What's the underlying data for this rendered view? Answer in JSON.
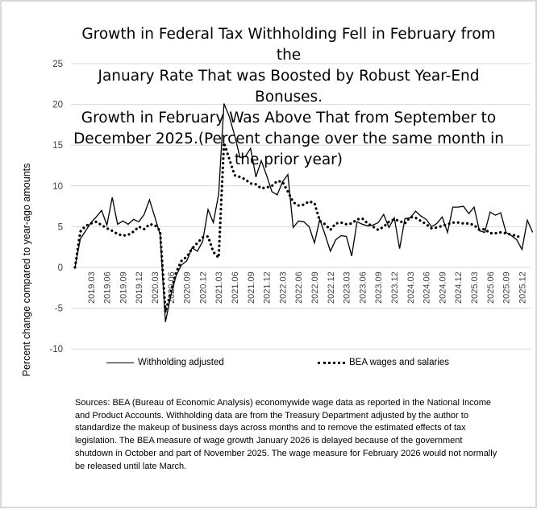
{
  "chart_data": {
    "type": "line",
    "title": "Growth in Federal Tax Withholding Fell in February from the January Rate That was Boosted by Robust Year-End Bonuses. Growth in February Was Above That from September to December 2025.(Percent change over the same month in the prior year)",
    "xlabel": "",
    "ylabel": "Percent change compared to year-ago amounts",
    "ylim": [
      -10,
      25
    ],
    "yticks": [
      "25",
      "20",
      "15",
      "10",
      "5",
      "0",
      "-5",
      "-10"
    ],
    "ytick_values": [
      25,
      20,
      15,
      10,
      5,
      0,
      -5,
      -10
    ],
    "grid": true,
    "legend_position": "bottom",
    "x_start": "2018.12",
    "xtick_labels": [
      "2019.03",
      "2019.06",
      "2019.09",
      "2019.12",
      "2020.03",
      "2020.06",
      "2020.09",
      "2020.12",
      "2021.03",
      "2021.06",
      "2021.09",
      "2021.12",
      "2022.03",
      "2022.06",
      "2022.09",
      "2022.12",
      "2023.03",
      "2023.06",
      "2023.09",
      "2023.12",
      "2024.03",
      "2024.06",
      "2024.09",
      "2024.12",
      "2025.03",
      "2025.06",
      "2025.09",
      "2025.12"
    ],
    "series": [
      {
        "name": "Withholding adjusted",
        "style": "solid",
        "color": "#000000",
        "values": [
          0,
          3.5,
          4.5,
          5.5,
          6.2,
          7.0,
          5.2,
          8.6,
          5.3,
          5.7,
          5.3,
          5.9,
          5.6,
          6.5,
          8.3,
          6.2,
          4.0,
          -6.7,
          -3.5,
          -1.0,
          0.3,
          0.8,
          2.4,
          2.0,
          3.2,
          7.1,
          5.5,
          9.0,
          20.1,
          18.5,
          16.2,
          13.5,
          13.6,
          14.6,
          11.1,
          13.1,
          11.3,
          9.3,
          8.9,
          10.5,
          11.4,
          4.9,
          5.7,
          5.6,
          5.0,
          3.0,
          5.9,
          4.0,
          2.0,
          3.4,
          3.9,
          3.8,
          1.4,
          5.6,
          5.3,
          5.1,
          5.2,
          5.5,
          6.5,
          4.9,
          6.1,
          2.3,
          6.0,
          6.1,
          6.9,
          6.3,
          5.9,
          5.0,
          5.4,
          6.2,
          4.3,
          7.4,
          7.4,
          7.5,
          6.6,
          7.4,
          4.5,
          4.3,
          6.8,
          6.4,
          6.7,
          4.3,
          3.9,
          3.4,
          2.2,
          5.8,
          4.3
        ]
      },
      {
        "name": "BEA wages and salaries",
        "style": "dotted",
        "color": "#000000",
        "values": [
          0,
          4.4,
          5.1,
          5.4,
          5.6,
          5.2,
          4.8,
          4.5,
          4.1,
          3.9,
          4.0,
          4.4,
          5.0,
          4.7,
          5.3,
          5.2,
          4.5,
          -5.5,
          -3.0,
          -0.6,
          0.8,
          1.3,
          2.3,
          3.0,
          3.7,
          3.8,
          1.9,
          1.2,
          15.3,
          13.3,
          11.3,
          11.1,
          10.8,
          10.3,
          10.2,
          9.7,
          9.8,
          10.0,
          10.6,
          10.5,
          9.3,
          8.0,
          7.6,
          7.7,
          8.1,
          7.9,
          5.7,
          5.3,
          4.6,
          5.4,
          5.5,
          5.3,
          5.4,
          5.9,
          6.0,
          5.4,
          5.0,
          4.6,
          5.0,
          5.6,
          5.9,
          5.7,
          5.4,
          6.2,
          6.1,
          5.7,
          5.3,
          4.8,
          4.9,
          5.1,
          5.3,
          5.5,
          5.5,
          5.4,
          5.4,
          5.2,
          4.6,
          4.7,
          4.2,
          4.2,
          4.3,
          4.2,
          4.0,
          3.9,
          3.5
        ]
      }
    ]
  },
  "title_lines": [
    "Growth in Federal Tax Withholding Fell in February from the",
    "January Rate That was Boosted by Robust Year-End Bonuses.",
    "Growth in February Was Above That from September to",
    "December  2025.(Percent change over the same month in",
    "the prior year)"
  ],
  "ylabel": "Percent change compared to year-ago amounts",
  "legend": {
    "withholding": "Withholding adjusted",
    "bea": "BEA wages and salaries"
  },
  "sources": "Sources:  BEA (Bureau of Economic Analysis) economywide wage data as reported in the National Income and Product Accounts. Withholding data are from the Treasury Department adjusted by the author to standardize the makeup of business days across months and to remove the estimated effects of tax legislation. The BEA measure of wage growth January 2026 is delayed because of the government shutdown in October and part of November 2025. The wage measure for February 2026 would not normally be released until late March."
}
